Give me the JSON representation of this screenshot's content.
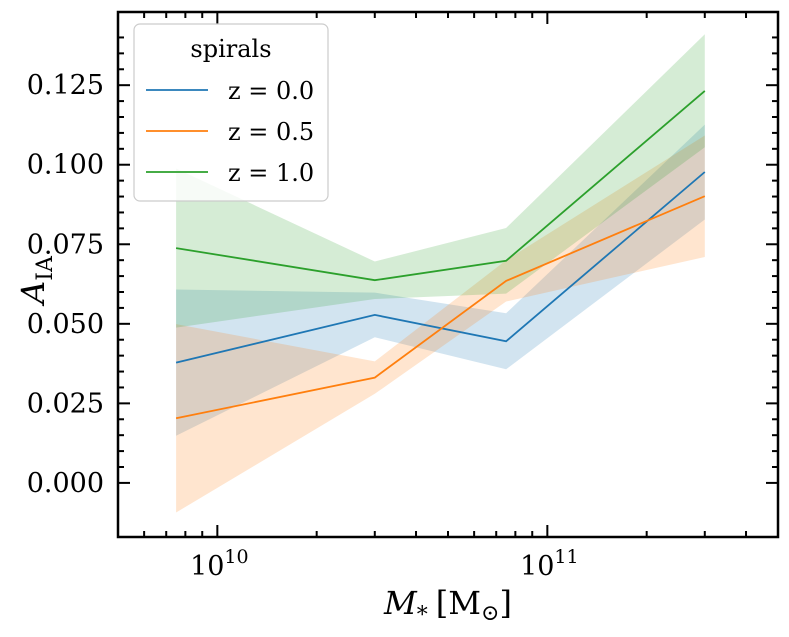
{
  "chart_data": {
    "type": "line",
    "x": [
      7500000000.0,
      30000000000.0,
      75000000000.0,
      300000000000.0
    ],
    "xscale": "log",
    "xlim": [
      5000000000.0,
      500000000000.0
    ],
    "ylim": [
      -0.017,
      0.148
    ],
    "yticks": [
      0.0,
      0.025,
      0.05,
      0.075,
      0.1,
      0.125
    ],
    "ytick_labels": [
      "0.000",
      "0.025",
      "0.050",
      "0.075",
      "0.100",
      "0.125"
    ],
    "xticks": [
      10000000000.0,
      100000000000.0
    ],
    "xtick_labels": [
      {
        "base": "10",
        "exp": "10"
      },
      {
        "base": "10",
        "exp": "11"
      }
    ],
    "xlabel": {
      "sym": "M",
      "sub": "*",
      "unit_open": "[M",
      "unit_sun": "⊙",
      "unit_close": "]"
    },
    "ylabel": {
      "sym": "A",
      "sub": "IA"
    },
    "legend": {
      "title": "spirals",
      "position": "top-left"
    },
    "series": [
      {
        "name": "z = 0.0",
        "color": "#1f77b4",
        "values": [
          0.0378,
          0.0528,
          0.0445,
          0.0977
        ],
        "lower": [
          0.0148,
          0.0458,
          0.0357,
          0.0828
        ],
        "upper": [
          0.0608,
          0.0598,
          0.0533,
          0.1126
        ]
      },
      {
        "name": "z = 0.5",
        "color": "#ff7f0e",
        "values": [
          0.0203,
          0.0331,
          0.0635,
          0.0901
        ],
        "lower": [
          -0.0093,
          0.028,
          0.057,
          0.071
        ],
        "upper": [
          0.0499,
          0.0382,
          0.07,
          0.1092
        ]
      },
      {
        "name": "z = 1.0",
        "color": "#2ca02c",
        "values": [
          0.0738,
          0.0637,
          0.0698,
          0.1232
        ],
        "lower": [
          0.0488,
          0.0578,
          0.0595,
          0.1055
        ],
        "upper": [
          0.0988,
          0.0696,
          0.0801,
          0.141
        ]
      }
    ]
  }
}
